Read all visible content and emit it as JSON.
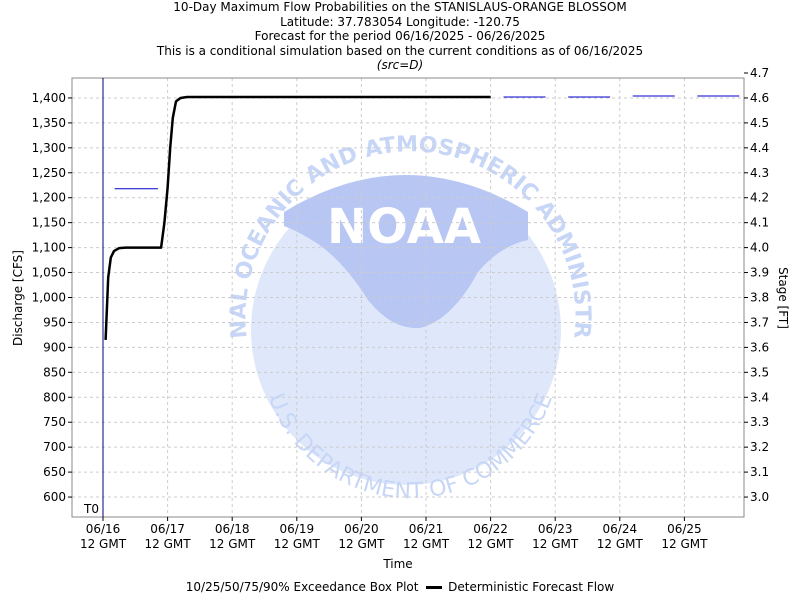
{
  "header": {
    "title_line1": "10-Day Maximum Flow Probabilities on the STANISLAUS-ORANGE BLOSSOM",
    "title_line2": "Latitude: 37.783054 Longitude: -120.75",
    "title_line3": "Forecast for the period 06/16/2025 - 06/26/2025",
    "title_line4": "This is a conditional simulation based on the current conditions as of 06/16/2025",
    "src": "(src=D)"
  },
  "colors": {
    "deterministic": "#000000",
    "exceedance": "#0000cc",
    "grid": "#cccccc",
    "t0": "#000080",
    "noaa_light": "#dfe8fb",
    "noaa_mid": "#c7d6f7",
    "noaa_dark": "#b8c6f4"
  },
  "watermark": {
    "top_text": "NATIONAL OCEANIC AND ATMOSPHERIC ADMINISTRATION",
    "center_text": "NOAA",
    "bottom_text": "U.S. DEPARTMENT OF COMMERCE"
  },
  "legend": {
    "box_label": "10/25/50/75/90% Exceedance Box Plot",
    "line_label": "Deterministic Forecast Flow"
  },
  "chart_data": {
    "type": "line",
    "xlabel": "Time",
    "ylabel_left": "Discharge [CFS]",
    "ylabel_right": "Stage [FT]",
    "x_ticks": [
      "06/16",
      "06/17",
      "06/18",
      "06/19",
      "06/20",
      "06/21",
      "06/22",
      "06/23",
      "06/24",
      "06/25"
    ],
    "x_tick_sub": "12 GMT",
    "xlim_days": [
      -0.5,
      10.0
    ],
    "t0_label": "T0",
    "t0_day": 0,
    "ylim_left": [
      560,
      1440
    ],
    "yticks_left": [
      600,
      650,
      700,
      750,
      800,
      850,
      900,
      950,
      1000,
      1050,
      1100,
      1150,
      1200,
      1250,
      1300,
      1350,
      1400
    ],
    "yticks_left_labels": [
      "600",
      "650",
      "700",
      "750",
      "800",
      "850",
      "900",
      "950",
      "1,000",
      "1,050",
      "1,100",
      "1,150",
      "1,200",
      "1,250",
      "1,300",
      "1,350",
      "1,400"
    ],
    "yticks_right": [
      {
        "label": "3.0",
        "cfs": 600
      },
      {
        "label": "3.1",
        "cfs": 650
      },
      {
        "label": "3.2",
        "cfs": 700
      },
      {
        "label": "3.3",
        "cfs": 750
      },
      {
        "label": "3.4",
        "cfs": 800
      },
      {
        "label": "3.5",
        "cfs": 850
      },
      {
        "label": "3.6",
        "cfs": 900
      },
      {
        "label": "3.7",
        "cfs": 950
      },
      {
        "label": "3.8",
        "cfs": 1000
      },
      {
        "label": "3.9",
        "cfs": 1050
      },
      {
        "label": "4.0",
        "cfs": 1100
      },
      {
        "label": "4.1",
        "cfs": 1150
      },
      {
        "label": "4.2",
        "cfs": 1200
      },
      {
        "label": "4.3",
        "cfs": 1250
      },
      {
        "label": "4.4",
        "cfs": 1300
      },
      {
        "label": "4.5",
        "cfs": 1350
      },
      {
        "label": "4.6",
        "cfs": 1400
      },
      {
        "label": "4.7",
        "cfs": 1450
      }
    ],
    "series": [
      {
        "name": "Deterministic Forecast Flow",
        "points": [
          [
            0.04,
            915
          ],
          [
            0.08,
            1040
          ],
          [
            0.12,
            1080
          ],
          [
            0.17,
            1093
          ],
          [
            0.25,
            1099
          ],
          [
            0.35,
            1100
          ],
          [
            0.9,
            1100
          ],
          [
            0.95,
            1150
          ],
          [
            1.0,
            1220
          ],
          [
            1.04,
            1300
          ],
          [
            1.08,
            1360
          ],
          [
            1.13,
            1393
          ],
          [
            1.2,
            1400
          ],
          [
            1.3,
            1402
          ],
          [
            6.0,
            1402
          ]
        ]
      }
    ],
    "exceedance_medians": [
      {
        "day_start": 0.18,
        "day_end": 0.85,
        "value": 1218
      },
      {
        "day_start": 6.2,
        "day_end": 6.85,
        "value": 1402
      },
      {
        "day_start": 7.2,
        "day_end": 7.85,
        "value": 1402
      },
      {
        "day_start": 8.2,
        "day_end": 8.85,
        "value": 1404
      },
      {
        "day_start": 9.2,
        "day_end": 9.85,
        "value": 1404
      }
    ]
  }
}
